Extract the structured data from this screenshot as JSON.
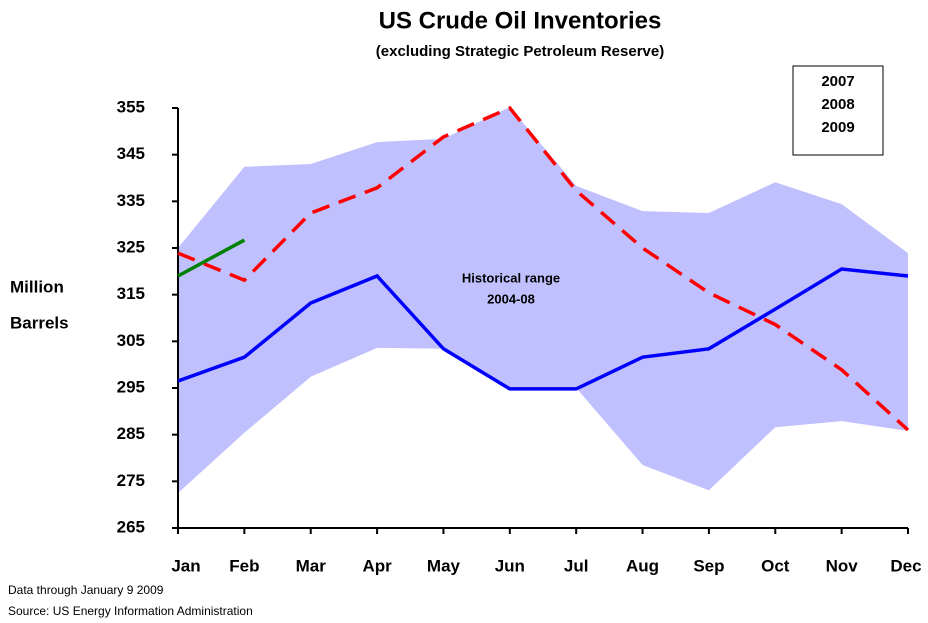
{
  "chart_data": {
    "type": "line",
    "title": "US Crude Oil Inventories",
    "subtitle": "(excluding Strategic Petroleum Reserve)",
    "y_label": [
      "Million",
      "Barrels"
    ],
    "categories": [
      "Jan",
      "Feb",
      "Mar",
      "Apr",
      "May",
      "Jun",
      "Jul",
      "Aug",
      "Sep",
      "Oct",
      "Nov",
      "Dec"
    ],
    "ylim": [
      265,
      355
    ],
    "yticks": [
      265,
      275,
      285,
      295,
      305,
      315,
      325,
      335,
      345,
      355
    ],
    "band": {
      "color": "#c0c0ff",
      "upper": [
        325,
        342.4,
        343,
        347.7,
        348.4,
        355.2,
        338.3,
        332.9,
        332.5,
        339.1,
        334.4,
        323.9
      ],
      "lower": [
        272.5,
        285.4,
        297.4,
        303.6,
        303.4,
        295,
        295,
        278.5,
        273.1,
        286.6,
        287.9,
        285.8
      ]
    },
    "annotation": [
      "Historical range",
      "2004-08"
    ],
    "series": [
      {
        "name": "2007",
        "color": "#ff0000",
        "dashed": true,
        "values": [
          323.9,
          318.1,
          332.5,
          337.9,
          348.8,
          355,
          337.3,
          325,
          315.4,
          308.6,
          298.9,
          286
        ]
      },
      {
        "name": "2008",
        "color": "#0000ff",
        "dashed": false,
        "values": [
          296.5,
          301.6,
          313.2,
          319,
          303.4,
          294.8,
          294.8,
          301.6,
          303.4,
          311.9,
          320.5,
          319
        ]
      },
      {
        "name": "2009",
        "color": "#008000",
        "dashed": false,
        "values": [
          319,
          326.7,
          null,
          null,
          null,
          null,
          null,
          null,
          null,
          null,
          null,
          null
        ]
      }
    ],
    "footnotes": [
      "Data through  January 9 2009",
      "Source: US Energy Information Administration"
    ]
  }
}
